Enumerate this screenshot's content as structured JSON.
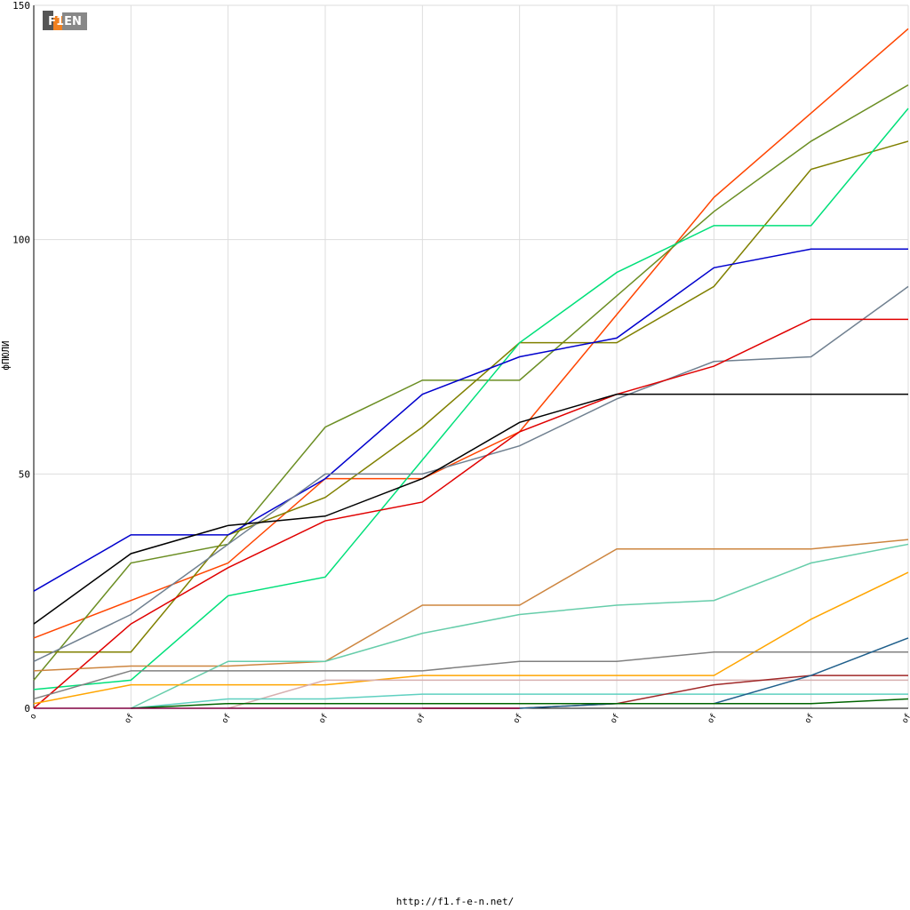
{
  "logo": "F1EN",
  "footer": "http://f1.f-e-n.net/",
  "chart_data": {
    "type": "line",
    "y_label": "фПЮЛИ",
    "categories": [
      "o",
      "of",
      "of",
      "of",
      "of",
      "of",
      "of",
      "of",
      "of",
      "of"
    ],
    "ylim": [
      0,
      150
    ],
    "yticks": [
      0,
      50,
      100,
      150
    ],
    "grid": true,
    "series": [
      {
        "color": "#ff4500",
        "values": [
          15,
          23,
          31,
          49,
          49,
          59,
          84,
          109,
          127,
          145
        ]
      },
      {
        "color": "#6b8e23",
        "values": [
          6,
          31,
          35,
          60,
          70,
          70,
          88,
          106,
          121,
          133
        ]
      },
      {
        "color": "#808000",
        "values": [
          12,
          12,
          37,
          45,
          60,
          78,
          78,
          90,
          115,
          121
        ]
      },
      {
        "color": "#00e07a",
        "values": [
          4,
          6,
          24,
          28,
          53,
          78,
          93,
          103,
          103,
          128
        ]
      },
      {
        "color": "#0000cd",
        "values": [
          25,
          37,
          37,
          49,
          67,
          75,
          79,
          94,
          98,
          98
        ]
      },
      {
        "color": "#708090",
        "values": [
          10,
          20,
          35,
          50,
          50,
          56,
          66,
          74,
          75,
          90
        ]
      },
      {
        "color": "#e00000",
        "values": [
          0,
          18,
          30,
          40,
          44,
          59,
          67,
          73,
          83,
          83
        ]
      },
      {
        "color": "#000000",
        "values": [
          18,
          33,
          39,
          41,
          49,
          61,
          67,
          67,
          67,
          67
        ]
      },
      {
        "color": "#cd853f",
        "values": [
          8,
          9,
          9,
          10,
          22,
          22,
          34,
          34,
          34,
          36
        ]
      },
      {
        "color": "#66cdaa",
        "values": [
          null,
          0,
          10,
          10,
          16,
          20,
          22,
          23,
          31,
          35
        ]
      },
      {
        "color": "#ffa500",
        "values": [
          1,
          5,
          5,
          5,
          7,
          7,
          7,
          7,
          19,
          29
        ]
      },
      {
        "color": "#808080",
        "values": [
          2,
          8,
          8,
          8,
          8,
          10,
          10,
          12,
          12,
          12
        ]
      },
      {
        "color": "#d8b0b0",
        "values": [
          null,
          null,
          0,
          6,
          6,
          6,
          6,
          6,
          6,
          6
        ]
      },
      {
        "color": "#5fd0c0",
        "values": [
          null,
          0,
          2,
          2,
          3,
          3,
          3,
          3,
          3,
          3
        ]
      },
      {
        "color": "#a02828",
        "values": [
          null,
          null,
          null,
          null,
          0,
          0,
          1,
          5,
          7,
          7
        ]
      },
      {
        "color": "#1f5f8b",
        "values": [
          null,
          null,
          null,
          null,
          null,
          0,
          1,
          1,
          7,
          15
        ]
      },
      {
        "color": "#006400",
        "values": [
          null,
          0,
          1,
          1,
          1,
          1,
          1,
          1,
          1,
          2
        ]
      },
      {
        "color": "#800040",
        "values": [
          0,
          0,
          0,
          0,
          0,
          0,
          null,
          null,
          null,
          null
        ]
      }
    ]
  }
}
